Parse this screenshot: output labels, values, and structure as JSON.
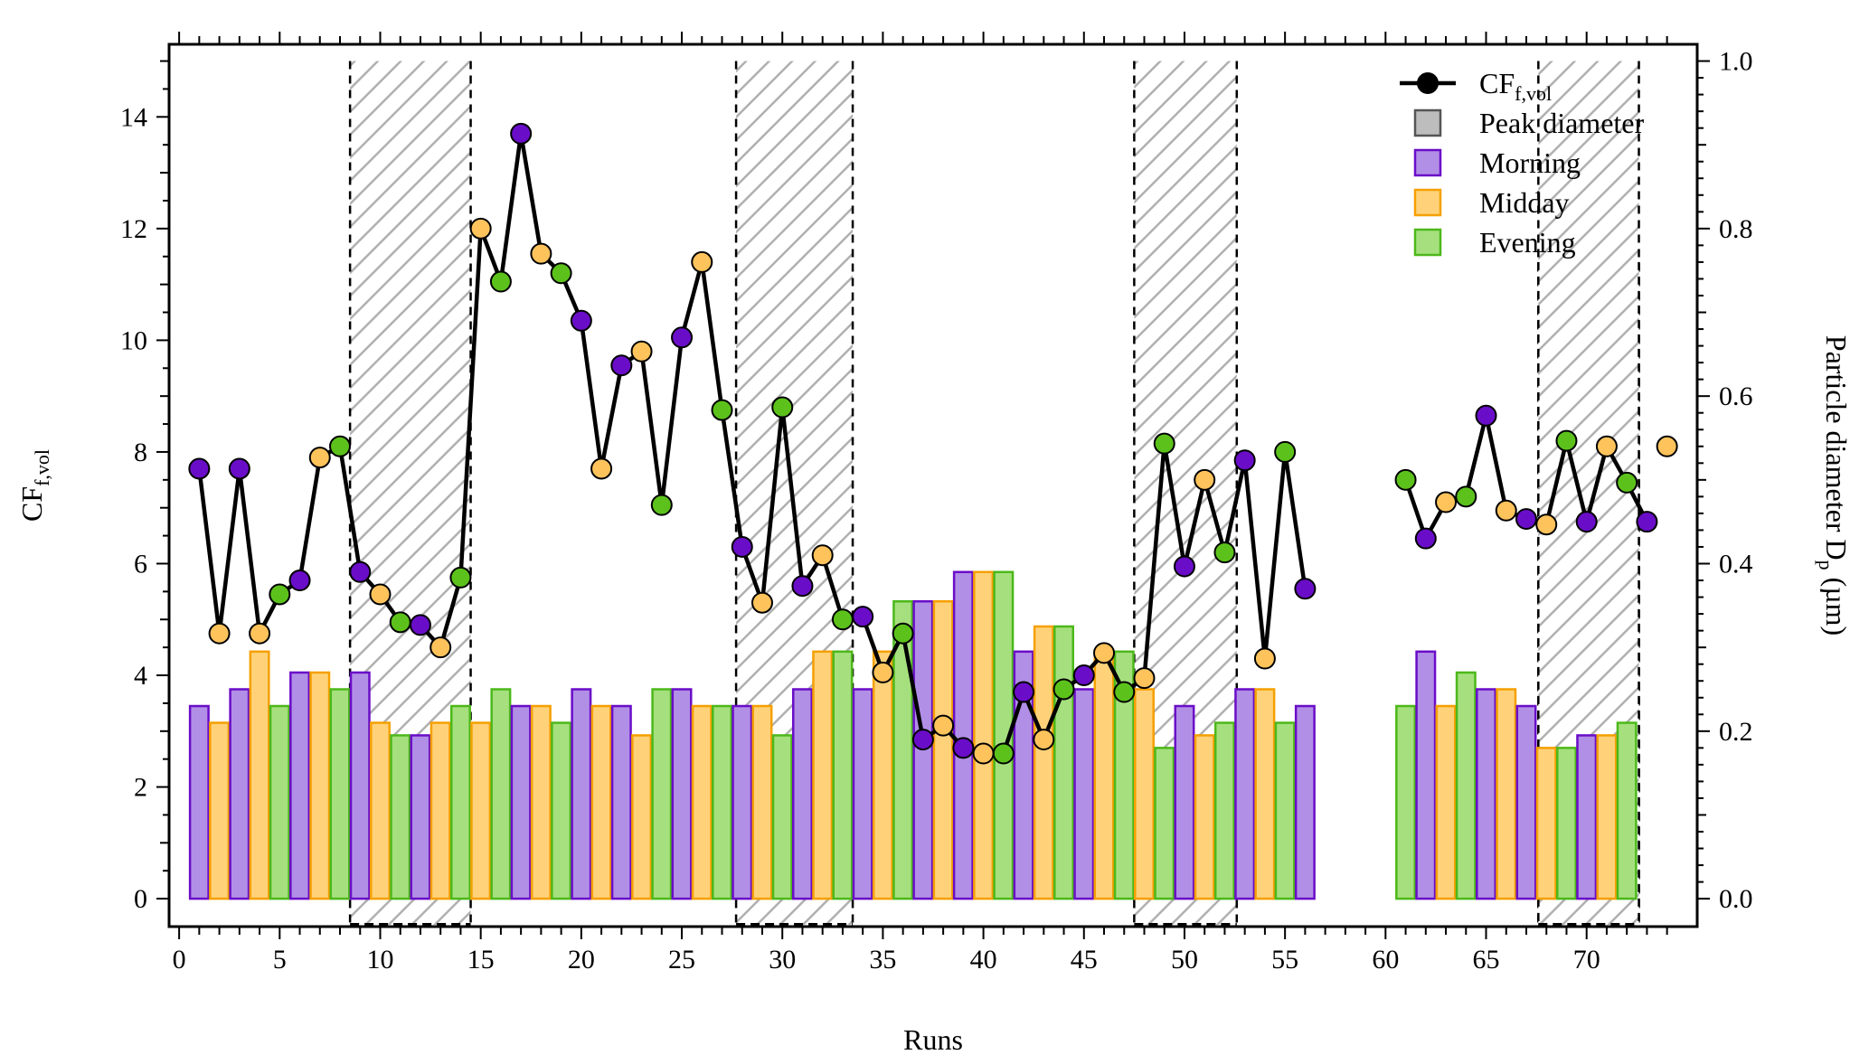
{
  "chart_data": {
    "type": "bar+line",
    "xlabel": "Runs",
    "ylabel_left": "CF",
    "ylabel_left_sub": "f,vol",
    "ylabel_right": "Particle diameter D",
    "ylabel_right_sub": "p",
    "ylabel_right_unit": " (µm)",
    "xlim": [
      -0.5,
      75.5
    ],
    "ylim_left": [
      -0.5,
      15.3
    ],
    "ylim_right": [
      -0.0333,
      1.02
    ],
    "xticks": [
      0,
      5,
      10,
      15,
      20,
      25,
      30,
      35,
      40,
      45,
      50,
      55,
      60,
      65,
      70
    ],
    "yticks_left": [
      0,
      2,
      4,
      6,
      8,
      10,
      12,
      14
    ],
    "yticks_right": [
      0.0,
      0.2,
      0.4,
      0.6,
      0.8,
      1.0
    ],
    "yticks_right_labels": [
      "0.0",
      "0.2",
      "0.4",
      "0.6",
      "0.8",
      "1.0"
    ],
    "legend": {
      "position": "top-right",
      "entries": [
        {
          "label": "CF",
          "sub": "f,vol",
          "kind": "line"
        },
        {
          "label": "Peak diameter",
          "kind": "patch",
          "color": "#bdbdbd",
          "edge": "#555555"
        },
        {
          "label": "Morning",
          "kind": "patch",
          "color": "#b18fe6",
          "edge": "#6a0dc8"
        },
        {
          "label": "Midday",
          "kind": "patch",
          "color": "#ffd27a",
          "edge": "#f5a000"
        },
        {
          "label": "Evening",
          "kind": "patch",
          "color": "#a6e07e",
          "edge": "#4cb81a"
        }
      ]
    },
    "colors": {
      "morning_fill": "#b18fe6",
      "morning_edge": "#6a0dc8",
      "morning_marker": "#6a0dc8",
      "midday_fill": "#ffd27a",
      "midday_edge": "#f5a000",
      "midday_marker": "#ffc35c",
      "evening_fill": "#a6e07e",
      "evening_edge": "#4cb81a",
      "evening_marker": "#5cc21b",
      "line": "#000000",
      "hatch": "#b0b0b0"
    },
    "hatched_regions": [
      {
        "from": 8.5,
        "to": 14.5,
        "top": 1.0
      },
      {
        "from": 27.7,
        "to": 33.5,
        "top": 1.0
      },
      {
        "from": 47.5,
        "to": 52.6,
        "top": 1.0
      },
      {
        "from": 67.6,
        "to": 72.6,
        "top": 1.0
      },
      {
        "from": 67.6,
        "to": 72.6,
        "top": 0.76
      }
    ],
    "bars_peak_diameter": [
      {
        "run": 1,
        "period": "Morning",
        "value": 0.23
      },
      {
        "run": 2,
        "period": "Midday",
        "value": 0.21
      },
      {
        "run": 3,
        "period": "Morning",
        "value": 0.25
      },
      {
        "run": 4,
        "period": "Midday",
        "value": 0.295
      },
      {
        "run": 5,
        "period": "Evening",
        "value": 0.23
      },
      {
        "run": 6,
        "period": "Morning",
        "value": 0.27
      },
      {
        "run": 7,
        "period": "Midday",
        "value": 0.27
      },
      {
        "run": 8,
        "period": "Evening",
        "value": 0.25
      },
      {
        "run": 9,
        "period": "Morning",
        "value": 0.27
      },
      {
        "run": 10,
        "period": "Midday",
        "value": 0.21
      },
      {
        "run": 11,
        "period": "Evening",
        "value": 0.195
      },
      {
        "run": 12,
        "period": "Morning",
        "value": 0.195
      },
      {
        "run": 13,
        "period": "Midday",
        "value": 0.21
      },
      {
        "run": 14,
        "period": "Evening",
        "value": 0.23
      },
      {
        "run": 15,
        "period": "Midday",
        "value": 0.21
      },
      {
        "run": 16,
        "period": "Evening",
        "value": 0.25
      },
      {
        "run": 17,
        "period": "Morning",
        "value": 0.23
      },
      {
        "run": 18,
        "period": "Midday",
        "value": 0.23
      },
      {
        "run": 19,
        "period": "Evening",
        "value": 0.21
      },
      {
        "run": 20,
        "period": "Morning",
        "value": 0.25
      },
      {
        "run": 21,
        "period": "Midday",
        "value": 0.23
      },
      {
        "run": 22,
        "period": "Morning",
        "value": 0.23
      },
      {
        "run": 23,
        "period": "Midday",
        "value": 0.195
      },
      {
        "run": 24,
        "period": "Evening",
        "value": 0.25
      },
      {
        "run": 25,
        "period": "Morning",
        "value": 0.25
      },
      {
        "run": 26,
        "period": "Midday",
        "value": 0.23
      },
      {
        "run": 27,
        "period": "Evening",
        "value": 0.23
      },
      {
        "run": 28,
        "period": "Morning",
        "value": 0.23
      },
      {
        "run": 29,
        "period": "Midday",
        "value": 0.23
      },
      {
        "run": 30,
        "period": "Evening",
        "value": 0.195
      },
      {
        "run": 31,
        "period": "Morning",
        "value": 0.25
      },
      {
        "run": 32,
        "period": "Midday",
        "value": 0.295
      },
      {
        "run": 33,
        "period": "Evening",
        "value": 0.295
      },
      {
        "run": 34,
        "period": "Morning",
        "value": 0.25
      },
      {
        "run": 35,
        "period": "Midday",
        "value": 0.295
      },
      {
        "run": 36,
        "period": "Evening",
        "value": 0.355
      },
      {
        "run": 37,
        "period": "Morning",
        "value": 0.355
      },
      {
        "run": 38,
        "period": "Midday",
        "value": 0.355
      },
      {
        "run": 39,
        "period": "Morning",
        "value": 0.39
      },
      {
        "run": 40,
        "period": "Midday",
        "value": 0.39
      },
      {
        "run": 41,
        "period": "Evening",
        "value": 0.39
      },
      {
        "run": 42,
        "period": "Morning",
        "value": 0.295
      },
      {
        "run": 43,
        "period": "Midday",
        "value": 0.325
      },
      {
        "run": 44,
        "period": "Evening",
        "value": 0.325
      },
      {
        "run": 45,
        "period": "Morning",
        "value": 0.25
      },
      {
        "run": 46,
        "period": "Midday",
        "value": 0.295
      },
      {
        "run": 47,
        "period": "Evening",
        "value": 0.295
      },
      {
        "run": 48,
        "period": "Midday",
        "value": 0.25
      },
      {
        "run": 49,
        "period": "Evening",
        "value": 0.18
      },
      {
        "run": 50,
        "period": "Morning",
        "value": 0.23
      },
      {
        "run": 51,
        "period": "Midday",
        "value": 0.195
      },
      {
        "run": 52,
        "period": "Evening",
        "value": 0.21
      },
      {
        "run": 53,
        "period": "Morning",
        "value": 0.25
      },
      {
        "run": 54,
        "period": "Midday",
        "value": 0.25
      },
      {
        "run": 55,
        "period": "Evening",
        "value": 0.21
      },
      {
        "run": 56,
        "period": "Morning",
        "value": 0.23
      },
      {
        "run": 61,
        "period": "Evening",
        "value": 0.23
      },
      {
        "run": 62,
        "period": "Morning",
        "value": 0.295
      },
      {
        "run": 63,
        "period": "Midday",
        "value": 0.23
      },
      {
        "run": 64,
        "period": "Evening",
        "value": 0.27
      },
      {
        "run": 65,
        "period": "Morning",
        "value": 0.25
      },
      {
        "run": 66,
        "period": "Midday",
        "value": 0.25
      },
      {
        "run": 67,
        "period": "Morning",
        "value": 0.23
      },
      {
        "run": 68,
        "period": "Midday",
        "value": 0.18
      },
      {
        "run": 69,
        "period": "Evening",
        "value": 0.18
      },
      {
        "run": 70,
        "period": "Morning",
        "value": 0.195
      },
      {
        "run": 71,
        "period": "Midday",
        "value": 0.195
      },
      {
        "run": 72,
        "period": "Evening",
        "value": 0.21
      }
    ],
    "series_cf": [
      {
        "run": 1,
        "period": "Morning",
        "value": 7.7
      },
      {
        "run": 2,
        "period": "Midday",
        "value": 4.75
      },
      {
        "run": 3,
        "period": "Morning",
        "value": 7.7
      },
      {
        "run": 4,
        "period": "Midday",
        "value": 4.75
      },
      {
        "run": 5,
        "period": "Evening",
        "value": 5.45
      },
      {
        "run": 6,
        "period": "Morning",
        "value": 5.7
      },
      {
        "run": 7,
        "period": "Midday",
        "value": 7.9
      },
      {
        "run": 8,
        "period": "Evening",
        "value": 8.1
      },
      {
        "run": 9,
        "period": "Morning",
        "value": 5.85
      },
      {
        "run": 10,
        "period": "Midday",
        "value": 5.45
      },
      {
        "run": 11,
        "period": "Evening",
        "value": 4.95
      },
      {
        "run": 12,
        "period": "Morning",
        "value": 4.9
      },
      {
        "run": 13,
        "period": "Midday",
        "value": 4.5
      },
      {
        "run": 14,
        "period": "Evening",
        "value": 5.75
      },
      {
        "run": 15,
        "period": "Midday",
        "value": 12.0
      },
      {
        "run": 16,
        "period": "Evening",
        "value": 11.05
      },
      {
        "run": 17,
        "period": "Morning",
        "value": 13.7
      },
      {
        "run": 18,
        "period": "Midday",
        "value": 11.55
      },
      {
        "run": 19,
        "period": "Evening",
        "value": 11.2
      },
      {
        "run": 20,
        "period": "Morning",
        "value": 10.35
      },
      {
        "run": 21,
        "period": "Midday",
        "value": 7.7
      },
      {
        "run": 22,
        "period": "Morning",
        "value": 9.55
      },
      {
        "run": 23,
        "period": "Midday",
        "value": 9.8
      },
      {
        "run": 24,
        "period": "Evening",
        "value": 7.05
      },
      {
        "run": 25,
        "period": "Morning",
        "value": 10.05
      },
      {
        "run": 26,
        "period": "Midday",
        "value": 11.4
      },
      {
        "run": 27,
        "period": "Evening",
        "value": 8.75
      },
      {
        "run": 28,
        "period": "Morning",
        "value": 6.3
      },
      {
        "run": 29,
        "period": "Midday",
        "value": 5.3
      },
      {
        "run": 30,
        "period": "Evening",
        "value": 8.8
      },
      {
        "run": 31,
        "period": "Morning",
        "value": 5.6
      },
      {
        "run": 32,
        "period": "Midday",
        "value": 6.15
      },
      {
        "run": 33,
        "period": "Evening",
        "value": 5.0
      },
      {
        "run": 34,
        "period": "Morning",
        "value": 5.05
      },
      {
        "run": 35,
        "period": "Midday",
        "value": 4.05
      },
      {
        "run": 36,
        "period": "Evening",
        "value": 4.75
      },
      {
        "run": 37,
        "period": "Morning",
        "value": 2.85
      },
      {
        "run": 38,
        "period": "Midday",
        "value": 3.1
      },
      {
        "run": 39,
        "period": "Morning",
        "value": 2.7
      },
      {
        "run": 40,
        "period": "Midday",
        "value": 2.6
      },
      {
        "run": 41,
        "period": "Evening",
        "value": 2.6
      },
      {
        "run": 42,
        "period": "Morning",
        "value": 3.7
      },
      {
        "run": 43,
        "period": "Midday",
        "value": 2.85
      },
      {
        "run": 44,
        "period": "Evening",
        "value": 3.75
      },
      {
        "run": 45,
        "period": "Morning",
        "value": 4.0
      },
      {
        "run": 46,
        "period": "Midday",
        "value": 4.4
      },
      {
        "run": 47,
        "period": "Evening",
        "value": 3.7
      },
      {
        "run": 48,
        "period": "Midday",
        "value": 3.95
      },
      {
        "run": 49,
        "period": "Evening",
        "value": 8.15
      },
      {
        "run": 50,
        "period": "Morning",
        "value": 5.95
      },
      {
        "run": 51,
        "period": "Midday",
        "value": 7.5
      },
      {
        "run": 52,
        "period": "Evening",
        "value": 6.2
      },
      {
        "run": 53,
        "period": "Morning",
        "value": 7.85
      },
      {
        "run": 54,
        "period": "Midday",
        "value": 4.3
      },
      {
        "run": 55,
        "period": "Evening",
        "value": 8.0
      },
      {
        "run": 56,
        "period": "Morning",
        "value": 5.55
      },
      {
        "run": 61,
        "period": "Evening",
        "value": 7.5
      },
      {
        "run": 62,
        "period": "Morning",
        "value": 6.45
      },
      {
        "run": 63,
        "period": "Midday",
        "value": 7.1
      },
      {
        "run": 64,
        "period": "Evening",
        "value": 7.2
      },
      {
        "run": 65,
        "period": "Morning",
        "value": 8.65
      },
      {
        "run": 66,
        "period": "Midday",
        "value": 6.95
      },
      {
        "run": 67,
        "period": "Morning",
        "value": 6.8
      },
      {
        "run": 68,
        "period": "Midday",
        "value": 6.7
      },
      {
        "run": 69,
        "period": "Evening",
        "value": 8.2
      },
      {
        "run": 70,
        "period": "Morning",
        "value": 6.75
      },
      {
        "run": 71,
        "period": "Midday",
        "value": 8.1
      },
      {
        "run": 72,
        "period": "Evening",
        "value": 7.45
      },
      {
        "run": 73,
        "period": "Morning",
        "value": 6.75
      },
      {
        "run": 74,
        "period": "Midday",
        "value": 8.1
      }
    ],
    "line_segments": [
      [
        1,
        56
      ],
      [
        61,
        73
      ]
    ],
    "grid": false
  }
}
